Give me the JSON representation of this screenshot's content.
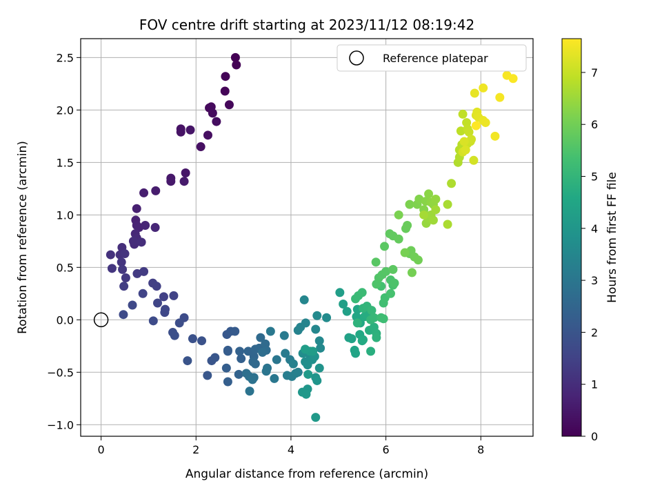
{
  "chart_data": {
    "type": "scatter",
    "title": "FOV centre drift starting at 2023/11/12 08:19:42",
    "xlabel": "Angular distance from reference (arcmin)",
    "ylabel": "Rotation from reference (arcmin)",
    "xlim": [
      -0.43,
      9.1
    ],
    "ylim": [
      -1.11,
      2.68
    ],
    "xticks": [
      0,
      2,
      4,
      6,
      8
    ],
    "yticks": [
      -1.0,
      -0.5,
      0.0,
      0.5,
      1.0,
      1.5,
      2.0,
      2.5
    ],
    "grid": true,
    "legend": {
      "location": "top-right",
      "label": "Reference platepar"
    },
    "reference_point": {
      "x": 0,
      "y": 0
    },
    "colorbar": {
      "label": "Hours from first FF file",
      "colormap": "viridis",
      "range": [
        0,
        7.65
      ],
      "ticks": [
        0,
        1,
        2,
        3,
        4,
        5,
        6,
        7
      ]
    },
    "series": [
      {
        "points": [
          [
            2.83,
            2.5
          ],
          [
            2.85,
            2.43
          ],
          [
            2.62,
            2.32
          ],
          [
            2.61,
            2.18
          ],
          [
            2.7,
            2.05
          ],
          [
            2.28,
            2.02
          ],
          [
            2.32,
            2.03
          ],
          [
            2.35,
            1.97
          ],
          [
            2.43,
            1.89
          ],
          [
            2.25,
            1.76
          ],
          [
            2.1,
            1.65
          ],
          [
            1.68,
            1.82
          ],
          [
            1.68,
            1.79
          ],
          [
            1.88,
            1.81
          ],
          [
            1.78,
            1.4
          ],
          [
            1.47,
            1.35
          ],
          [
            1.47,
            1.32
          ],
          [
            1.75,
            1.32
          ],
          [
            1.15,
            1.23
          ],
          [
            0.9,
            1.21
          ],
          [
            0.75,
            1.06
          ],
          [
            0.73,
            0.95
          ],
          [
            0.75,
            0.9
          ],
          [
            0.8,
            0.88
          ],
          [
            0.93,
            0.9
          ],
          [
            1.14,
            0.88
          ],
          [
            0.72,
            0.82
          ],
          [
            0.75,
            0.78
          ],
          [
            0.7,
            0.72
          ],
          [
            0.68,
            0.75
          ],
          [
            0.85,
            0.74
          ],
          [
            0.44,
            0.69
          ],
          [
            0.4,
            0.62
          ],
          [
            0.2,
            0.62
          ],
          [
            0.5,
            0.63
          ],
          [
            0.43,
            0.55
          ],
          [
            0.23,
            0.49
          ],
          [
            0.45,
            0.48
          ],
          [
            0.52,
            0.4
          ],
          [
            0.76,
            0.44
          ],
          [
            0.9,
            0.46
          ],
          [
            0.48,
            0.32
          ],
          [
            1.09,
            0.35
          ],
          [
            1.17,
            0.32
          ],
          [
            1.32,
            0.22
          ],
          [
            1.53,
            0.23
          ],
          [
            0.88,
            0.25
          ],
          [
            1.19,
            0.16
          ],
          [
            1.35,
            0.1
          ],
          [
            1.34,
            0.07
          ],
          [
            0.66,
            0.14
          ],
          [
            0.47,
            0.05
          ],
          [
            1.1,
            -0.01
          ],
          [
            1.75,
            0.02
          ],
          [
            1.65,
            -0.03
          ],
          [
            1.51,
            -0.12
          ],
          [
            1.55,
            -0.15
          ],
          [
            1.93,
            -0.18
          ],
          [
            2.12,
            -0.2
          ],
          [
            1.82,
            -0.39
          ],
          [
            2.33,
            -0.39
          ],
          [
            2.4,
            -0.36
          ],
          [
            2.24,
            -0.53
          ],
          [
            2.65,
            -0.14
          ],
          [
            2.73,
            -0.11
          ],
          [
            2.82,
            -0.11
          ],
          [
            2.67,
            -0.29
          ],
          [
            2.67,
            -0.3
          ],
          [
            2.64,
            -0.46
          ],
          [
            2.67,
            -0.59
          ],
          [
            2.95,
            -0.37
          ],
          [
            2.92,
            -0.3
          ],
          [
            2.9,
            -0.52
          ],
          [
            3.1,
            -0.3
          ],
          [
            3.22,
            -0.35
          ],
          [
            3.25,
            -0.28
          ],
          [
            3.33,
            -0.27
          ],
          [
            3.2,
            -0.4
          ],
          [
            3.25,
            -0.42
          ],
          [
            3.36,
            -0.17
          ],
          [
            3.46,
            -0.23
          ],
          [
            3.48,
            -0.29
          ],
          [
            3.4,
            -0.31
          ],
          [
            3.06,
            -0.51
          ],
          [
            3.12,
            -0.54
          ],
          [
            3.22,
            -0.55
          ],
          [
            3.19,
            -0.57
          ],
          [
            3.13,
            -0.68
          ],
          [
            3.5,
            -0.46
          ],
          [
            3.48,
            -0.49
          ],
          [
            3.7,
            -0.38
          ],
          [
            3.65,
            -0.56
          ],
          [
            3.57,
            -0.11
          ],
          [
            3.86,
            -0.15
          ],
          [
            3.88,
            -0.32
          ],
          [
            3.98,
            -0.38
          ],
          [
            3.92,
            -0.53
          ],
          [
            4.02,
            -0.54
          ],
          [
            4.1,
            -0.51
          ],
          [
            4.15,
            -0.5
          ],
          [
            4.05,
            -0.42
          ],
          [
            4.15,
            -0.1
          ],
          [
            4.2,
            -0.07
          ],
          [
            4.31,
            -0.03
          ],
          [
            4.28,
            0.19
          ],
          [
            4.52,
            -0.09
          ],
          [
            4.6,
            -0.2
          ],
          [
            4.62,
            -0.27
          ],
          [
            4.55,
            0.04
          ],
          [
            4.75,
            0.02
          ],
          [
            4.4,
            -0.34
          ],
          [
            4.25,
            -0.32
          ],
          [
            4.3,
            -0.4
          ],
          [
            4.35,
            -0.43
          ],
          [
            4.45,
            -0.38
          ],
          [
            4.5,
            -0.35
          ],
          [
            4.6,
            -0.46
          ],
          [
            4.52,
            -0.55
          ],
          [
            4.55,
            -0.58
          ],
          [
            4.35,
            -0.66
          ],
          [
            4.24,
            -0.69
          ],
          [
            4.32,
            -0.71
          ],
          [
            4.52,
            -0.93
          ],
          [
            4.36,
            -0.52
          ],
          [
            4.4,
            -0.3
          ],
          [
            4.46,
            -0.3
          ],
          [
            4.3,
            -0.28
          ],
          [
            5.03,
            0.26
          ],
          [
            5.1,
            0.15
          ],
          [
            5.18,
            0.08
          ],
          [
            5.22,
            -0.17
          ],
          [
            5.28,
            -0.18
          ],
          [
            5.34,
            -0.29
          ],
          [
            5.36,
            -0.32
          ],
          [
            5.4,
            0.1
          ],
          [
            5.38,
            0.03
          ],
          [
            5.46,
            -0.03
          ],
          [
            5.45,
            -0.14
          ],
          [
            5.5,
            -0.2
          ],
          [
            5.52,
            -0.19
          ],
          [
            5.55,
            0.03
          ],
          [
            5.6,
            0.05
          ],
          [
            5.65,
            -0.1
          ],
          [
            5.68,
            -0.3
          ],
          [
            5.75,
            -0.07
          ],
          [
            5.8,
            -0.13
          ],
          [
            5.8,
            -0.17
          ],
          [
            5.4,
            -0.03
          ],
          [
            5.52,
            0.11
          ],
          [
            5.6,
            0.13
          ],
          [
            5.68,
            0.0
          ],
          [
            5.7,
            0.09
          ],
          [
            5.75,
            0.02
          ],
          [
            5.36,
            0.2
          ],
          [
            5.42,
            0.23
          ],
          [
            5.5,
            0.26
          ],
          [
            5.9,
            0.02
          ],
          [
            5.95,
            0.01
          ],
          [
            5.95,
            0.16
          ],
          [
            5.98,
            0.21
          ],
          [
            5.9,
            0.32
          ],
          [
            6.1,
            0.25
          ],
          [
            6.15,
            0.33
          ],
          [
            6.1,
            0.38
          ],
          [
            6.18,
            0.35
          ],
          [
            5.8,
            0.34
          ],
          [
            5.85,
            0.4
          ],
          [
            5.92,
            0.43
          ],
          [
            6.0,
            0.46
          ],
          [
            5.79,
            0.55
          ],
          [
            5.97,
            0.7
          ],
          [
            6.15,
            0.48
          ],
          [
            6.08,
            0.82
          ],
          [
            6.15,
            0.8
          ],
          [
            6.27,
            0.77
          ],
          [
            6.42,
            0.87
          ],
          [
            6.45,
            0.9
          ],
          [
            6.5,
            0.63
          ],
          [
            6.53,
            0.66
          ],
          [
            6.6,
            0.6
          ],
          [
            6.68,
            0.57
          ],
          [
            6.55,
            0.45
          ],
          [
            6.4,
            0.64
          ],
          [
            6.27,
            1.0
          ],
          [
            6.5,
            1.1
          ],
          [
            6.66,
            1.1
          ],
          [
            6.7,
            1.15
          ],
          [
            6.8,
            1.05
          ],
          [
            6.84,
            1.13
          ],
          [
            6.9,
            1.2
          ],
          [
            6.95,
            1.12
          ],
          [
            7.0,
            1.1
          ],
          [
            7.05,
            1.15
          ],
          [
            6.85,
            0.92
          ],
          [
            6.9,
            0.97
          ],
          [
            6.95,
            1.0
          ],
          [
            7.0,
            0.95
          ],
          [
            7.05,
            1.05
          ],
          [
            6.8,
            1.0
          ],
          [
            7.3,
            1.1
          ],
          [
            7.3,
            0.91
          ],
          [
            7.38,
            1.3
          ],
          [
            7.52,
            1.5
          ],
          [
            7.55,
            1.55
          ],
          [
            7.55,
            1.62
          ],
          [
            7.6,
            1.67
          ],
          [
            7.58,
            1.8
          ],
          [
            7.62,
            1.96
          ],
          [
            7.7,
            1.88
          ],
          [
            7.72,
            1.82
          ],
          [
            7.75,
            1.79
          ],
          [
            7.72,
            1.68
          ],
          [
            7.78,
            1.7
          ],
          [
            7.8,
            1.72
          ],
          [
            7.85,
            1.52
          ],
          [
            7.62,
            1.6
          ],
          [
            7.65,
            1.7
          ],
          [
            7.68,
            1.62
          ],
          [
            7.9,
            1.95
          ],
          [
            7.92,
            1.98
          ],
          [
            7.95,
            1.93
          ],
          [
            7.87,
            2.16
          ],
          [
            8.05,
            1.9
          ],
          [
            8.1,
            1.88
          ],
          [
            8.05,
            2.21
          ],
          [
            8.3,
            1.75
          ],
          [
            8.4,
            2.12
          ],
          [
            8.55,
            2.33
          ],
          [
            8.68,
            2.3
          ],
          [
            7.9,
            1.85
          ]
        ]
      }
    ]
  }
}
